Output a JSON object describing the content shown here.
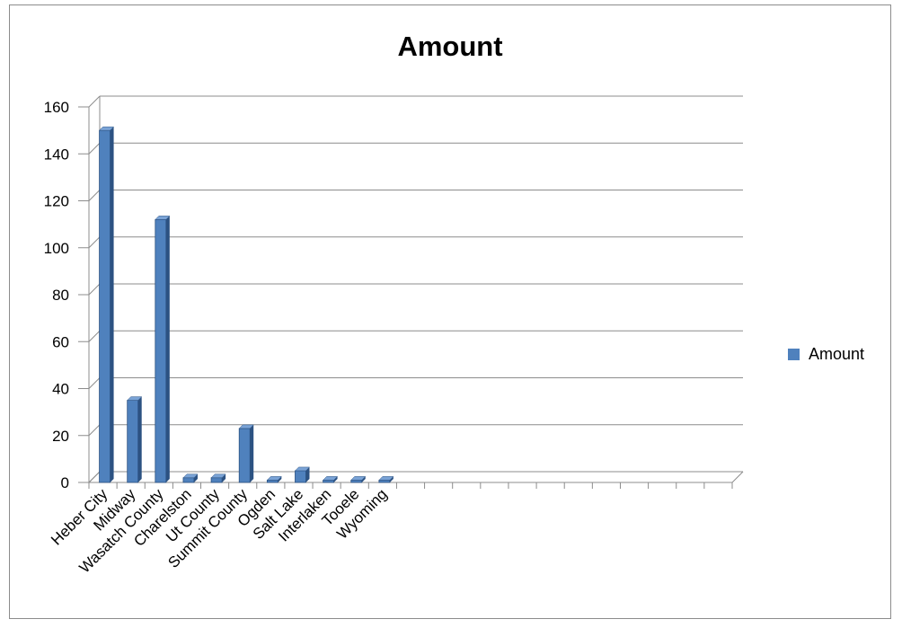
{
  "chart_data": {
    "type": "bar",
    "style": "3d-column",
    "title": "Amount",
    "categories": [
      "Heber City",
      "Midway",
      "Wasatch County",
      "Charelston",
      "Ut County",
      "Summit County",
      "Ogden",
      "Salt Lake",
      "Interlaken",
      "Tooele",
      "Wyoming",
      "",
      "",
      "",
      "",
      "",
      "",
      "",
      "",
      "",
      "",
      "",
      ""
    ],
    "series": [
      {
        "name": "Amount",
        "values": [
          150,
          35,
          112,
          2,
          2,
          23,
          1,
          5,
          1,
          1,
          1,
          0,
          0,
          0,
          0,
          0,
          0,
          0,
          0,
          0,
          0,
          0,
          0
        ]
      }
    ],
    "ylim": [
      0,
      160
    ],
    "yticks": [
      0,
      20,
      40,
      60,
      80,
      100,
      120,
      140,
      160
    ],
    "grid": true,
    "legend": "right",
    "colors": {
      "bar": "#4f81bd",
      "bar_dark": "#2c5282",
      "bar_top": "#7aa3d6",
      "grid": "#8c8c8c"
    }
  }
}
